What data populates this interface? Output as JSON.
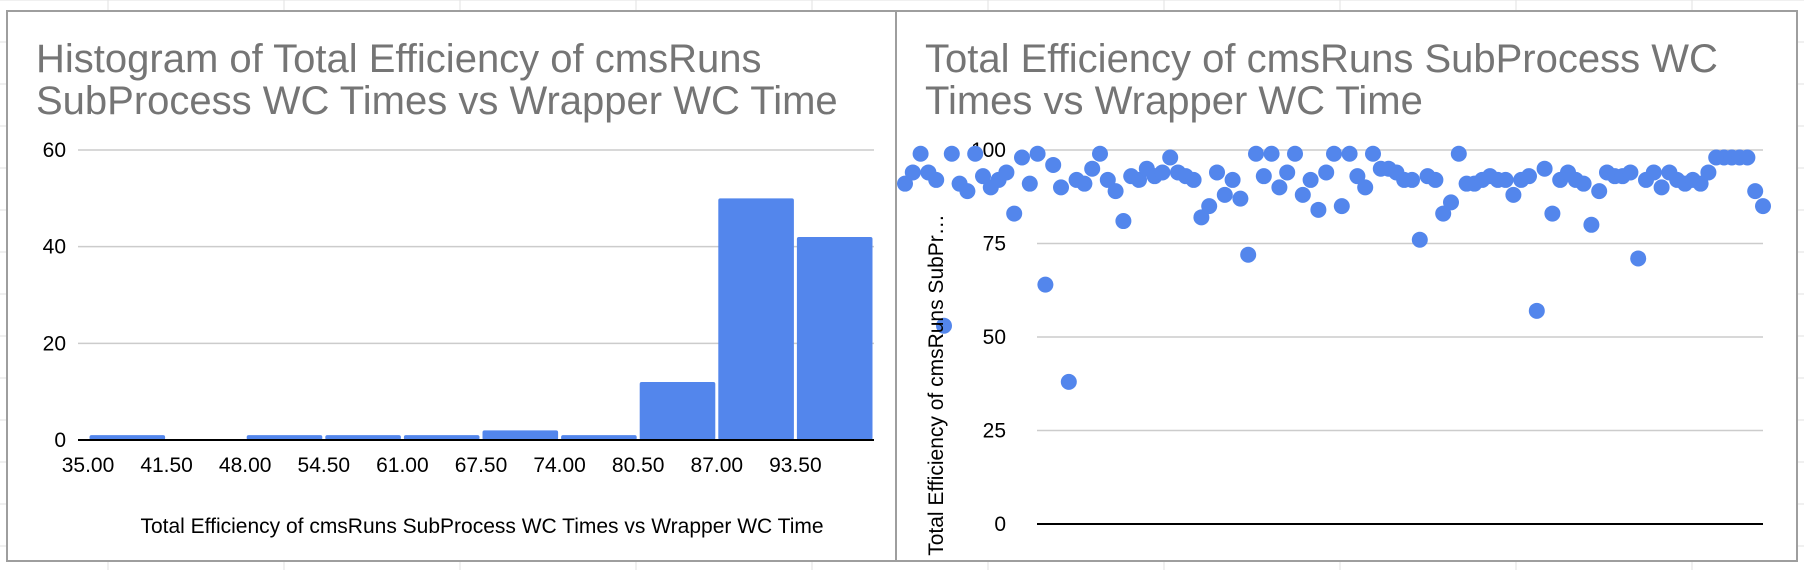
{
  "colors": {
    "accent": "#5386ec",
    "title_text": "#757575",
    "gridline": "#cccccc",
    "baseline": "#000000",
    "panel_border": "#9e9e9e",
    "sheet_grid": "#e2e2e2"
  },
  "chart_data": [
    {
      "type": "bar",
      "title": "Histogram of Total Efficiency of cmsRuns\nSubProcess WC Times vs Wrapper WC Time",
      "xlabel": "Total Efficiency of cmsRuns SubProcess WC Times vs Wrapper WC Time",
      "ylabel": "",
      "bin_edges": [
        35.0,
        41.5,
        48.0,
        54.5,
        61.0,
        67.5,
        74.0,
        80.5,
        87.0,
        93.5,
        100.0
      ],
      "x_tick_labels": [
        "35.00",
        "41.50",
        "48.00",
        "54.50",
        "61.00",
        "67.50",
        "74.00",
        "80.50",
        "87.00",
        "93.50"
      ],
      "values": [
        1,
        0,
        1,
        1,
        1,
        2,
        1,
        12,
        50,
        42
      ],
      "ylim": [
        0,
        60
      ],
      "y_ticks": [
        0,
        20,
        40,
        60
      ],
      "grid": true,
      "legend": "none"
    },
    {
      "type": "scatter",
      "title": "Total Efficiency of cmsRuns SubProcess WC\nTimes vs Wrapper WC Time",
      "xlabel": "",
      "ylabel": "Total Efficiency of cmsRuns SubPr…",
      "ylim": [
        0,
        100
      ],
      "y_ticks": [
        0,
        25,
        50,
        75,
        100
      ],
      "grid": true,
      "legend": "none",
      "points": [
        [
          1,
          91
        ],
        [
          2,
          94
        ],
        [
          3,
          99
        ],
        [
          4,
          94
        ],
        [
          5,
          92
        ],
        [
          6,
          53
        ],
        [
          7,
          99
        ],
        [
          8,
          91
        ],
        [
          9,
          89
        ],
        [
          10,
          99
        ],
        [
          11,
          93
        ],
        [
          12,
          90
        ],
        [
          13,
          92
        ],
        [
          14,
          94
        ],
        [
          15,
          83
        ],
        [
          16,
          98
        ],
        [
          17,
          91
        ],
        [
          18,
          99
        ],
        [
          19,
          64
        ],
        [
          20,
          96
        ],
        [
          21,
          90
        ],
        [
          22,
          38
        ],
        [
          23,
          92
        ],
        [
          24,
          91
        ],
        [
          25,
          95
        ],
        [
          26,
          99
        ],
        [
          27,
          92
        ],
        [
          28,
          89
        ],
        [
          29,
          81
        ],
        [
          30,
          93
        ],
        [
          31,
          92
        ],
        [
          32,
          95
        ],
        [
          33,
          93
        ],
        [
          34,
          94
        ],
        [
          35,
          98
        ],
        [
          36,
          94
        ],
        [
          37,
          93
        ],
        [
          38,
          92
        ],
        [
          39,
          82
        ],
        [
          40,
          85
        ],
        [
          41,
          94
        ],
        [
          42,
          88
        ],
        [
          43,
          92
        ],
        [
          44,
          87
        ],
        [
          45,
          72
        ],
        [
          46,
          99
        ],
        [
          47,
          93
        ],
        [
          48,
          99
        ],
        [
          49,
          90
        ],
        [
          50,
          94
        ],
        [
          51,
          99
        ],
        [
          52,
          88
        ],
        [
          53,
          92
        ],
        [
          54,
          84
        ],
        [
          55,
          94
        ],
        [
          56,
          99
        ],
        [
          57,
          85
        ],
        [
          58,
          99
        ],
        [
          59,
          93
        ],
        [
          60,
          90
        ],
        [
          61,
          99
        ],
        [
          62,
          95
        ],
        [
          63,
          95
        ],
        [
          64,
          94
        ],
        [
          65,
          92
        ],
        [
          66,
          92
        ],
        [
          67,
          76
        ],
        [
          68,
          93
        ],
        [
          69,
          92
        ],
        [
          70,
          83
        ],
        [
          71,
          86
        ],
        [
          72,
          99
        ],
        [
          73,
          91
        ],
        [
          74,
          91
        ],
        [
          75,
          92
        ],
        [
          76,
          93
        ],
        [
          77,
          92
        ],
        [
          78,
          92
        ],
        [
          79,
          88
        ],
        [
          80,
          92
        ],
        [
          81,
          93
        ],
        [
          82,
          57
        ],
        [
          83,
          95
        ],
        [
          84,
          83
        ],
        [
          85,
          92
        ],
        [
          86,
          94
        ],
        [
          87,
          92
        ],
        [
          88,
          91
        ],
        [
          89,
          80
        ],
        [
          90,
          89
        ],
        [
          91,
          94
        ],
        [
          92,
          93
        ],
        [
          93,
          93
        ],
        [
          94,
          94
        ],
        [
          95,
          71
        ],
        [
          96,
          92
        ],
        [
          97,
          94
        ],
        [
          98,
          90
        ],
        [
          99,
          94
        ],
        [
          100,
          92
        ],
        [
          101,
          91
        ],
        [
          102,
          92
        ],
        [
          103,
          91
        ],
        [
          104,
          94
        ],
        [
          105,
          98
        ],
        [
          106,
          98
        ],
        [
          107,
          98
        ],
        [
          108,
          98
        ],
        [
          109,
          98
        ],
        [
          110,
          89
        ],
        [
          111,
          85
        ]
      ]
    }
  ]
}
